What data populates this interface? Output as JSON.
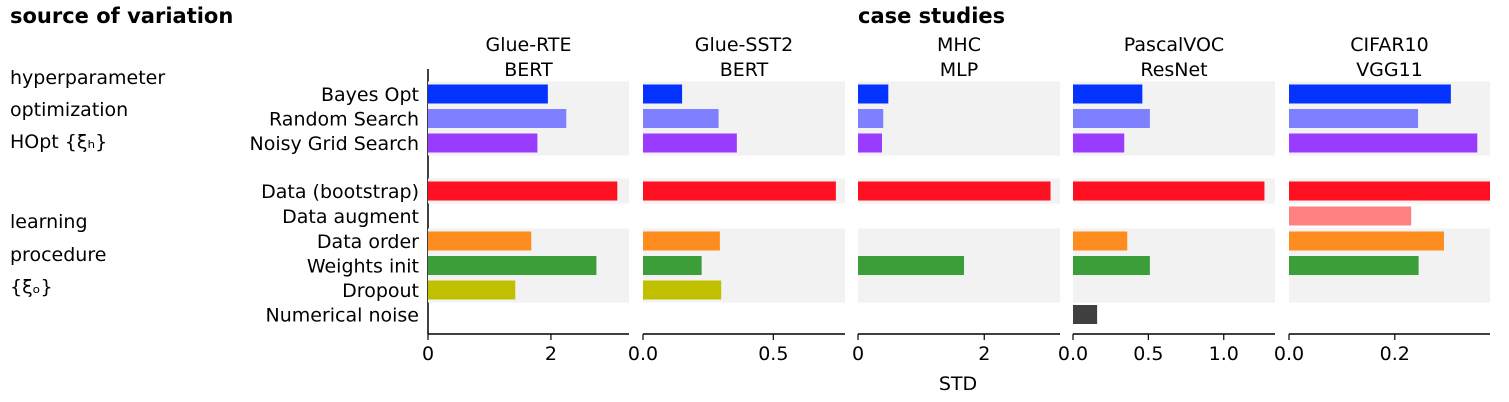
{
  "header": {
    "source_title": "source of variation",
    "case_title": "case studies"
  },
  "groups": {
    "hopt": [
      "hyperparameter",
      "optimization",
      "HOpt {ξₕ}"
    ],
    "learning": [
      "learning",
      "procedure",
      "{ξₒ}"
    ]
  },
  "chart_data": {
    "type": "bar",
    "orientation": "horizontal",
    "xlabel": "STD",
    "categories": [
      "Bayes Opt",
      "Random Search",
      "Noisy Grid Search",
      "Data (bootstrap)",
      "Data augment",
      "Data order",
      "Weights init",
      "Dropout",
      "Numerical noise"
    ],
    "colors": [
      "#0433ff",
      "#7f80ff",
      "#9a3cff",
      "#ff1020",
      "#ff8080",
      "#ff8c1f",
      "#3b9e39",
      "#c0c000",
      "#404040"
    ],
    "panels": [
      {
        "title": [
          "Glue-RTE",
          "BERT"
        ],
        "xlim": [
          0,
          3.27
        ],
        "ticks": [
          0,
          2
        ],
        "tick_labels": [
          "0",
          "2"
        ],
        "values": [
          1.95,
          2.25,
          1.78,
          3.08,
          null,
          1.68,
          2.74,
          1.42,
          null
        ]
      },
      {
        "title": [
          "Glue-SST2",
          "BERT"
        ],
        "xlim": [
          0,
          0.775
        ],
        "ticks": [
          0,
          0.5
        ],
        "tick_labels": [
          "0.0",
          "0.5"
        ],
        "values": [
          0.15,
          0.29,
          0.36,
          0.74,
          null,
          0.295,
          0.225,
          0.3,
          null
        ]
      },
      {
        "title": [
          "MHC",
          "MLP"
        ],
        "xlim": [
          0,
          3.2
        ],
        "ticks": [
          0,
          2
        ],
        "tick_labels": [
          "0",
          "2"
        ],
        "values": [
          0.48,
          0.4,
          0.38,
          3.05,
          null,
          null,
          1.68,
          null,
          null
        ]
      },
      {
        "title": [
          "PascalVOC",
          "ResNet"
        ],
        "xlim": [
          0,
          1.34
        ],
        "ticks": [
          0,
          0.5,
          1.0
        ],
        "tick_labels": [
          "0.0",
          "0.5",
          "1.0"
        ],
        "values": [
          0.46,
          0.51,
          0.34,
          1.27,
          null,
          0.36,
          0.51,
          null,
          0.16
        ]
      },
      {
        "title": [
          "CIFAR10",
          "VGG11"
        ],
        "xlim": [
          0,
          0.38
        ],
        "ticks": [
          0,
          0.2
        ],
        "tick_labels": [
          "0.0",
          "0.2"
        ],
        "values": [
          0.306,
          0.244,
          0.356,
          0.38,
          0.231,
          0.293,
          0.245,
          null,
          null
        ]
      }
    ]
  }
}
